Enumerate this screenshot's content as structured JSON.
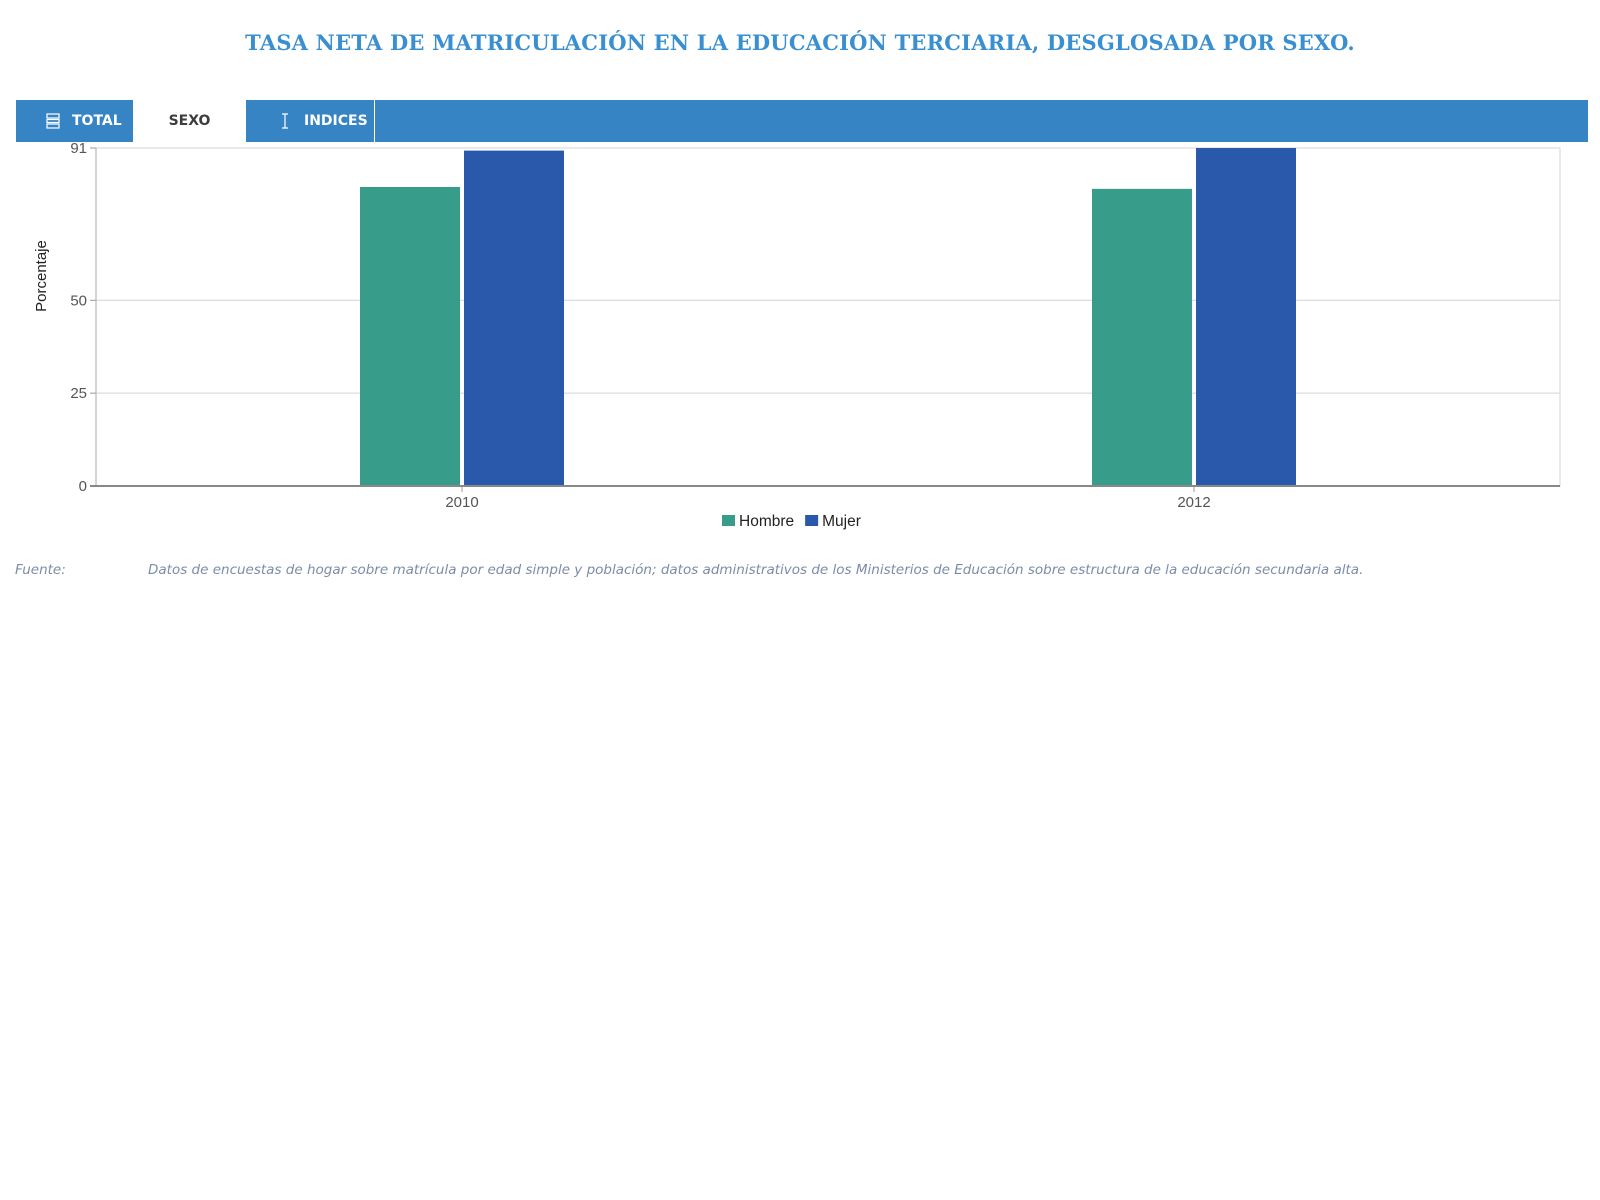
{
  "title": "TASA NETA DE MATRICULACIÓN EN LA EDUCACIÓN TERCIARIA, DESGLOSADA POR SEXO.",
  "tabs": [
    {
      "label": "TOTAL",
      "icon": "rows-icon",
      "active": false
    },
    {
      "label": "SEXO",
      "icon": "",
      "active": true
    },
    {
      "label": "INDICES",
      "icon": "text-cursor-icon",
      "active": false
    }
  ],
  "colors": {
    "accent": "#3784c4",
    "title": "#3a8fd0",
    "hombre": "#389c8b",
    "mujer": "#2a58ab"
  },
  "chart_data": {
    "type": "bar",
    "categories": [
      "2010",
      "2012"
    ],
    "series": [
      {
        "name": "Hombre",
        "values": [
          80.5,
          80.0
        ]
      },
      {
        "name": "Mujer",
        "values": [
          90.3,
          91.0
        ]
      }
    ],
    "ylabel": "Porcentaje",
    "xlabel": "",
    "ylim": [
      0,
      91
    ],
    "yticks": [
      0,
      25,
      50,
      91
    ],
    "grid": true,
    "legend": "bottom-center"
  },
  "source": {
    "label": "Fuente:",
    "text": "Datos de encuestas de hogar sobre matrícula por edad simple y población; datos administrativos de los Ministerios de Educación sobre estructura de la educación secundaria alta."
  }
}
